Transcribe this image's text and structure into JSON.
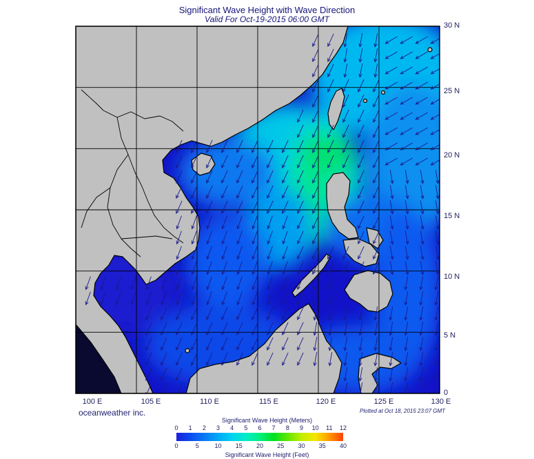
{
  "header": {
    "title": "Significant Wave Height with Wave Direction",
    "subtitle": "Valid For Oct-19-2015 06:00 GMT"
  },
  "axes": {
    "lat_labels": [
      "30 N",
      "25 N",
      "20 N",
      "15 N",
      "10 N",
      "5 N",
      "0"
    ],
    "lon_labels": [
      "100 E",
      "105 E",
      "110 E",
      "115 E",
      "120 E",
      "125 E",
      "130 E"
    ]
  },
  "footer": {
    "credit": "oceanweather inc.",
    "plotted": "Plotted at Oct 18, 2015 23:07 GMT"
  },
  "legend": {
    "meters_title": "Significant Wave Height (Meters)",
    "feet_title": "Significant Wave Height (Feet)",
    "meters_ticks": [
      "0",
      "1",
      "2",
      "3",
      "4",
      "5",
      "6",
      "7",
      "8",
      "9",
      "10",
      "11",
      "12"
    ],
    "feet_ticks": [
      "0",
      "5",
      "10",
      "15",
      "20",
      "25",
      "30",
      "35",
      "40"
    ],
    "colors": [
      "#1f1fd9",
      "#0a4cf0",
      "#0a78f5",
      "#00a8f5",
      "#00d2f0",
      "#00ecc8",
      "#00f080",
      "#00e020",
      "#60e800",
      "#c0ee00",
      "#f5e600",
      "#ff9a00",
      "#ff4000"
    ]
  },
  "colors": {
    "land": "#c0c0c0",
    "deep_sea": "#1212c8",
    "coast": "#000000",
    "grid": "#000000",
    "arrow": "#1a1a8c"
  }
}
